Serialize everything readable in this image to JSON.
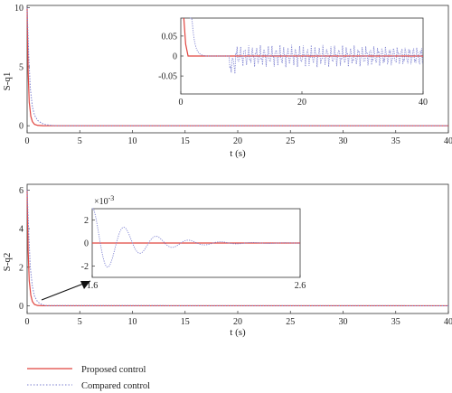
{
  "chart_data": [
    {
      "type": "line",
      "xlabel": "t (s)",
      "ylabel": "S-q1",
      "xlim": [
        0,
        40
      ],
      "ylim": [
        -0.6,
        10.2
      ],
      "xticks": [
        0,
        5,
        10,
        15,
        20,
        25,
        30,
        35,
        40
      ],
      "yticks": [
        0,
        5,
        10
      ],
      "series": [
        {
          "name": "Proposed control",
          "color": "#e0443f",
          "style": "solid",
          "x": [
            0,
            0.1,
            0.2,
            0.35,
            0.5,
            0.7,
            1.0,
            1.5,
            2,
            40
          ],
          "y": [
            10,
            4.5,
            2.0,
            0.8,
            0.35,
            0.12,
            0.03,
            0.005,
            0,
            0
          ]
        },
        {
          "name": "Compared control",
          "color": "#7b7fd0",
          "style": "dotted",
          "x": [
            0,
            0.15,
            0.3,
            0.5,
            0.7,
            1.0,
            1.4,
            1.8,
            2.4,
            3,
            40
          ],
          "y": [
            10,
            6.0,
            3.2,
            1.6,
            0.9,
            0.45,
            0.2,
            0.08,
            0.02,
            0,
            0
          ]
        }
      ],
      "inset": {
        "xlim": [
          0,
          40
        ],
        "ylim": [
          -0.095,
          0.095
        ],
        "xticks": [
          0,
          20,
          40
        ],
        "yticks": [
          -0.05,
          0,
          0.05
        ],
        "ytick_labels": [
          "-0.05",
          "0",
          "0.05"
        ]
      }
    },
    {
      "type": "line",
      "xlabel": "t (s)",
      "ylabel": "S-q2",
      "xlim": [
        0,
        40
      ],
      "ylim": [
        -0.4,
        6.3
      ],
      "xticks": [
        0,
        5,
        10,
        15,
        20,
        25,
        30,
        35,
        40
      ],
      "yticks": [
        0,
        2,
        4,
        6
      ],
      "series": [
        {
          "name": "Proposed control",
          "color": "#e0443f",
          "style": "solid",
          "x": [
            0,
            0.1,
            0.2,
            0.35,
            0.5,
            0.7,
            1.0,
            1.5,
            40
          ],
          "y": [
            6,
            2.8,
            1.3,
            0.55,
            0.22,
            0.07,
            0.015,
            0,
            0
          ]
        },
        {
          "name": "Compared control",
          "color": "#7b7fd0",
          "style": "dotted",
          "x": [
            0,
            0.15,
            0.3,
            0.5,
            0.7,
            1.0,
            1.4,
            1.8,
            40
          ],
          "y": [
            6,
            3.8,
            2.0,
            1.0,
            0.5,
            0.2,
            0.06,
            0.01,
            0
          ]
        }
      ],
      "inset": {
        "xlim": [
          1.6,
          2.6
        ],
        "ylim": [
          -3,
          3
        ],
        "xticks": [
          1.6,
          2.6
        ],
        "xtick_labels": [
          "1.6",
          "2.6"
        ],
        "yticks": [
          -2,
          0,
          2
        ],
        "ytick_labels": [
          "-2",
          "0",
          "2"
        ],
        "scale_label": "×10",
        "scale_exponent": "-3"
      }
    }
  ],
  "legend": {
    "items": [
      {
        "label": "Proposed control",
        "color": "#e0443f",
        "style": "solid"
      },
      {
        "label": "Compared control",
        "color": "#7b7fd0",
        "style": "dotted"
      }
    ],
    "placement": "bottom-left"
  }
}
